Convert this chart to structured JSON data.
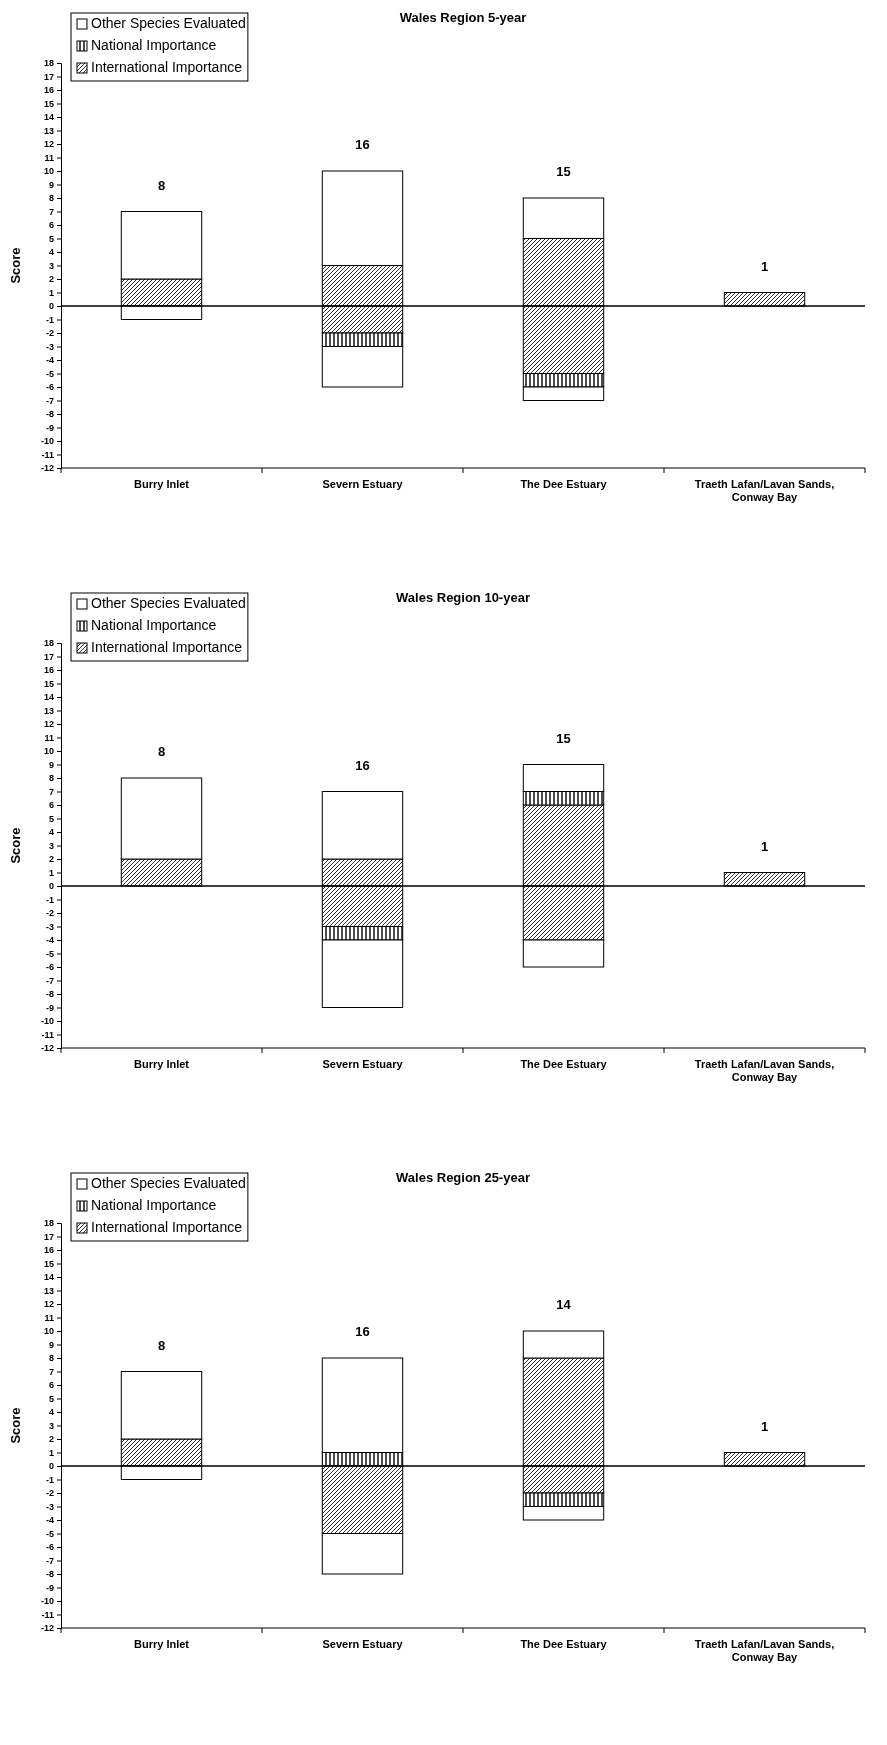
{
  "chart_data": [
    {
      "type": "bar",
      "title": "Wales Region 5-year",
      "ylabel": "Score",
      "categories": [
        "Burry Inlet",
        "Severn Estuary",
        "The Dee Estuary",
        "Traeth Lafan/Lavan Sands, Conway Bay"
      ],
      "stacked": true,
      "ylim": [
        -12,
        18
      ],
      "yticks": [
        -12,
        -11,
        -10,
        -9,
        -8,
        -7,
        -6,
        -5,
        -4,
        -3,
        -2,
        -1,
        0,
        1,
        2,
        3,
        4,
        5,
        6,
        7,
        8,
        9,
        10,
        11,
        12,
        13,
        14,
        15,
        16,
        17,
        18
      ],
      "legend": "top left",
      "annotations": [
        "8",
        "16",
        "15",
        "1"
      ],
      "series": [
        {
          "name": "International Importance",
          "color": "#000000",
          "values": [
            2,
            3,
            5,
            1
          ]
        },
        {
          "name": "National Importance",
          "color": "#000000",
          "values": [
            null,
            null,
            null,
            null
          ]
        },
        {
          "name": "Other Species Evaluated",
          "color": "#ffffff",
          "values": [
            5,
            7,
            3,
            null
          ]
        },
        {
          "color": "#000000",
          "values": [
            null,
            -2,
            -5,
            null
          ]
        },
        {
          "color": "#000000",
          "values": [
            null,
            -1,
            -1,
            null
          ]
        },
        {
          "color": "#ffffff",
          "values": [
            -1,
            -3,
            -1,
            null
          ]
        }
      ]
    },
    {
      "type": "bar",
      "title": "Wales Region 10-year",
      "ylabel": "Score",
      "categories": [
        "Burry Inlet",
        "Severn Estuary",
        "The Dee Estuary",
        "Traeth Lafan/Lavan Sands, Conway Bay"
      ],
      "stacked": true,
      "ylim": [
        -12,
        18
      ],
      "yticks": [
        -12,
        -11,
        -10,
        -9,
        -8,
        -7,
        -6,
        -5,
        -4,
        -3,
        -2,
        -1,
        0,
        1,
        2,
        3,
        4,
        5,
        6,
        7,
        8,
        9,
        10,
        11,
        12,
        13,
        14,
        15,
        16,
        17,
        18
      ],
      "legend": "top left",
      "annotations": [
        "8",
        "16",
        "15",
        "1"
      ],
      "series": [
        {
          "name": "International Importance",
          "color": "#000000",
          "values": [
            2,
            2,
            6,
            1
          ]
        },
        {
          "name": "National Importance",
          "color": "#000000",
          "values": [
            null,
            null,
            1,
            null
          ]
        },
        {
          "name": "Other Species Evaluated",
          "color": "#ffffff",
          "values": [
            6,
            5,
            2,
            null
          ]
        },
        {
          "color": "#000000",
          "values": [
            null,
            -3,
            -4,
            null
          ]
        },
        {
          "color": "#000000",
          "values": [
            null,
            -1,
            null,
            null
          ]
        },
        {
          "color": "#ffffff",
          "values": [
            null,
            -5,
            -2,
            null
          ]
        }
      ]
    },
    {
      "type": "bar",
      "title": "Wales Region 25-year",
      "ylabel": "Score",
      "categories": [
        "Burry Inlet",
        "Severn Estuary",
        "The Dee Estuary",
        "Traeth Lafan/Lavan Sands, Conway Bay"
      ],
      "stacked": true,
      "ylim": [
        -12,
        18
      ],
      "yticks": [
        -12,
        -11,
        -10,
        -9,
        -8,
        -7,
        -6,
        -5,
        -4,
        -3,
        -2,
        -1,
        0,
        1,
        2,
        3,
        4,
        5,
        6,
        7,
        8,
        9,
        10,
        11,
        12,
        13,
        14,
        15,
        16,
        17,
        18
      ],
      "legend": "top left",
      "annotations": [
        "8",
        "16",
        "14",
        "1"
      ],
      "series": [
        {
          "name": "International Importance",
          "color": "#000000",
          "values": [
            2,
            null,
            8,
            1
          ]
        },
        {
          "name": "National Importance",
          "color": "#000000",
          "values": [
            null,
            1,
            null,
            null
          ]
        },
        {
          "name": "Other Species Evaluated",
          "color": "#ffffff",
          "values": [
            5,
            7,
            2,
            null
          ]
        },
        {
          "color": "#000000",
          "values": [
            null,
            -5,
            -2,
            null
          ]
        },
        {
          "color": "#000000",
          "values": [
            null,
            null,
            -1,
            null
          ]
        },
        {
          "color": "#ffffff",
          "values": [
            -1,
            -3,
            -1,
            null
          ]
        }
      ]
    }
  ]
}
